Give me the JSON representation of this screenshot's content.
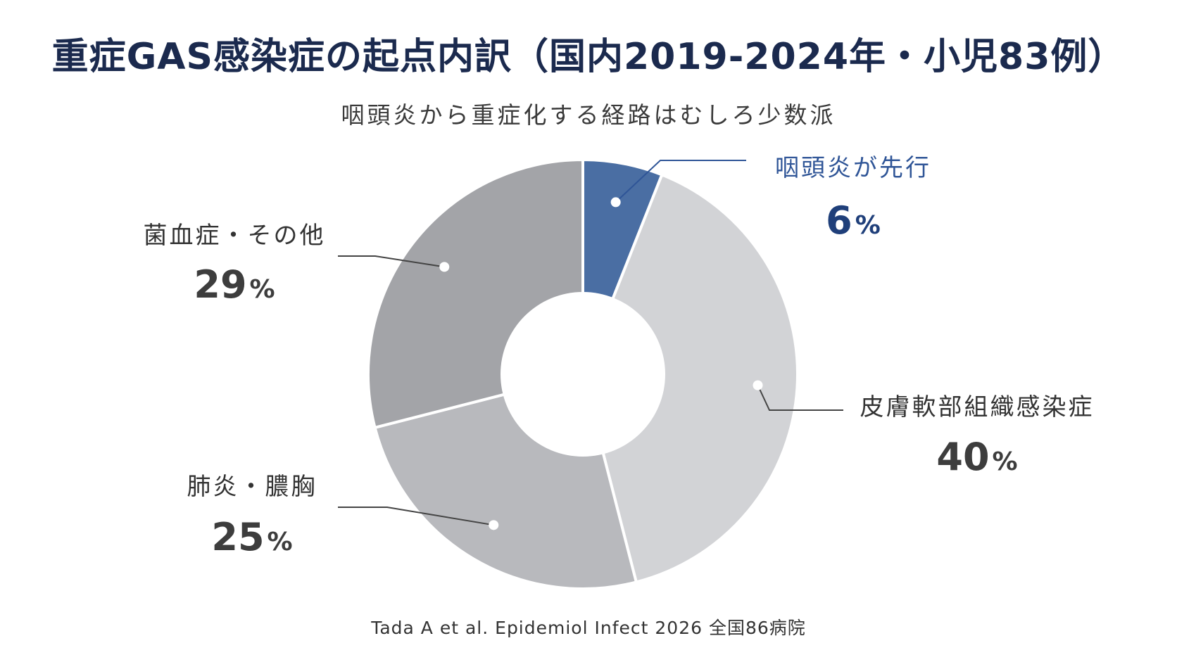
{
  "header": {
    "title": "重症GAS感染症の起点内訳（国内2019-2024年・小児83例）",
    "subtitle": "咽頭炎から重症化する経路はむしろ少数派"
  },
  "chart_data": {
    "type": "pie",
    "donut": true,
    "unit": "%",
    "slices": [
      {
        "label": "咽頭炎が先行",
        "value": 6,
        "color": "#4a6ea3",
        "highlight": true
      },
      {
        "label": "皮膚軟部組織感染症",
        "value": 40,
        "color": "#d2d3d6"
      },
      {
        "label": "肺炎・膿胸",
        "value": 25,
        "color": "#b8b9bd"
      },
      {
        "label": "菌血症・その他",
        "value": 29,
        "color": "#a3a4a8"
      }
    ]
  },
  "footer": {
    "source": "Tada A et al. Epidemiol Infect 2026 全国86病院"
  }
}
